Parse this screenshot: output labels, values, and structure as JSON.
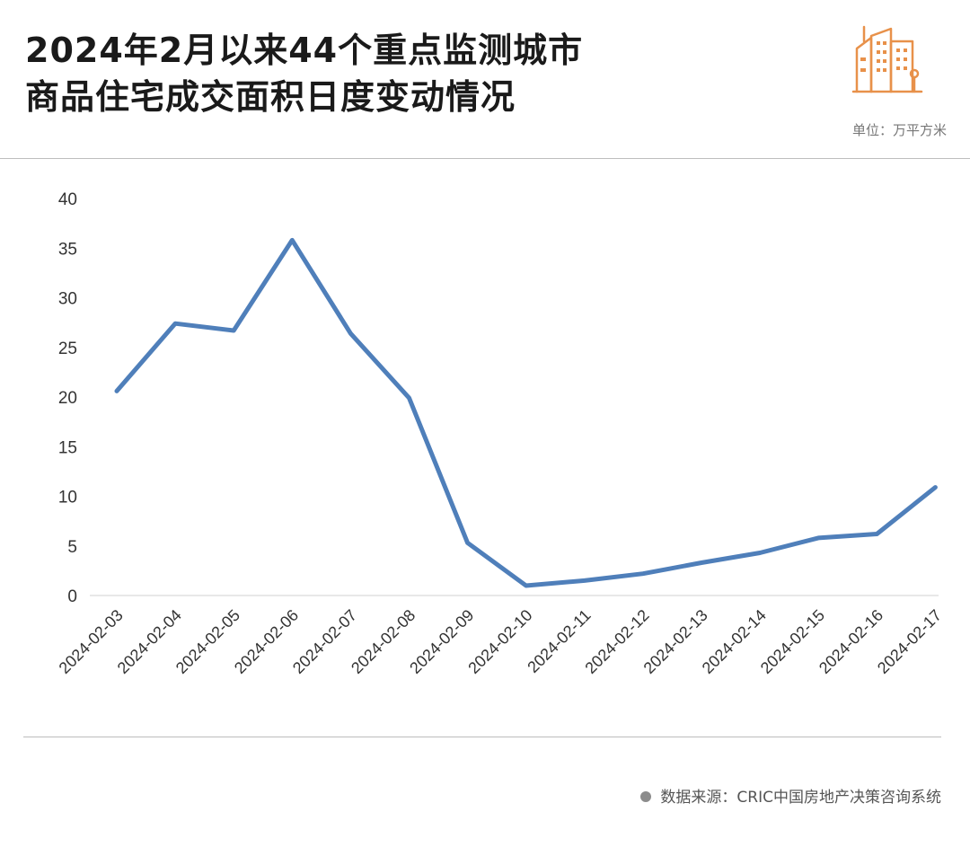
{
  "header": {
    "title_line1": "2024年2月以来44个重点监测城市",
    "title_line2": "商品住宅成交面积日度变动情况",
    "unit": "单位：万平方米",
    "logo_icon": "buildings-icon"
  },
  "footer": {
    "source": "数据来源：CRIC中国房地产决策咨询系统"
  },
  "colors": {
    "line": "#4f7fba",
    "logo": "#e8914a",
    "grid": "#e3e3e3"
  },
  "chart_data": {
    "type": "line",
    "title": "2024年2月以来44个重点监测城市商品住宅成交面积日度变动情况",
    "xlabel": "",
    "ylabel": "",
    "unit": "万平方米",
    "ylim": [
      0,
      40
    ],
    "yticks": [
      0,
      5,
      10,
      15,
      20,
      25,
      30,
      35,
      40
    ],
    "grid": "horizontal",
    "legend": "none",
    "categories": [
      "2024-02-03",
      "2024-02-04",
      "2024-02-05",
      "2024-02-06",
      "2024-02-07",
      "2024-02-08",
      "2024-02-09",
      "2024-02-10",
      "2024-02-11",
      "2024-02-12",
      "2024-02-13",
      "2024-02-14",
      "2024-02-15",
      "2024-02-16",
      "2024-02-17"
    ],
    "series": [
      {
        "values": [
          20.6,
          27.4,
          26.7,
          35.8,
          26.4,
          19.9,
          5.3,
          1.0,
          1.5,
          2.2,
          3.3,
          4.3,
          5.8,
          6.2,
          10.9
        ]
      }
    ]
  }
}
